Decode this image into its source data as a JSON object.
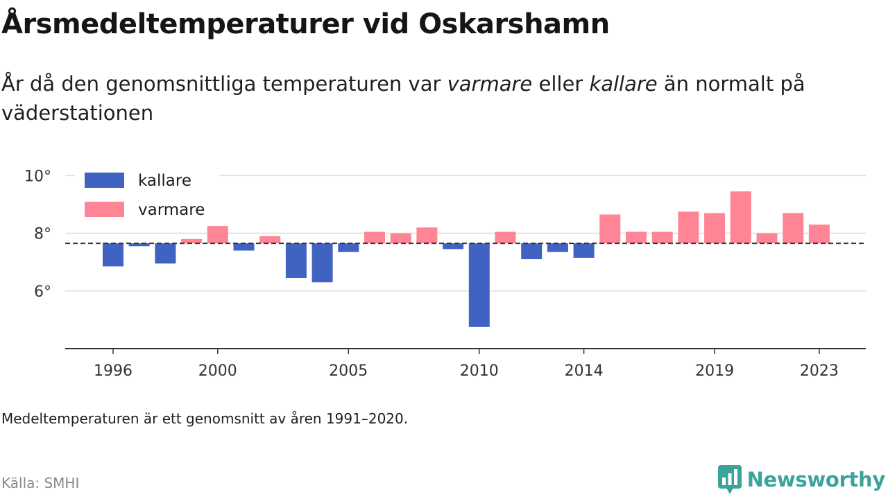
{
  "header": {
    "title": "Årsmedeltemperaturer vid Oskarshamn",
    "subtitle_before": "År då den genomsnittliga temperaturen var ",
    "subtitle_warm_word": "varmare",
    "subtitle_middle": " eller ",
    "subtitle_cold_word": "kallare",
    "subtitle_after": " än normalt på väderstationen"
  },
  "footer": {
    "note": "Medeltemperaturen är ett genomsnitt av åren 1991–2020.",
    "source": "Källa: SMHI",
    "brand": "Newsworthy"
  },
  "colors": {
    "cold": "#4062c0",
    "warm": "#ff8496",
    "baseline": "#333333",
    "grid": "#dddddd",
    "axis": "#333333",
    "brand": "#3aa39a"
  },
  "chart_data": {
    "type": "bar",
    "title": "Årsmedeltemperaturer vid Oskarshamn",
    "xlabel": "",
    "ylabel": "",
    "baseline": 7.65,
    "ylim": [
      4.0,
      10.2
    ],
    "y_ticks": [
      6,
      8,
      10
    ],
    "y_tick_labels": [
      "6°",
      "8°",
      "10°"
    ],
    "x_ticks": [
      1996,
      2000,
      2005,
      2010,
      2014,
      2019,
      2023
    ],
    "x_tick_labels": [
      "1996",
      "2000",
      "2005",
      "2010",
      "2014",
      "2019",
      "2023"
    ],
    "legend": {
      "position": "top-left",
      "entries": [
        {
          "key": "cold",
          "label": "kallare"
        },
        {
          "key": "warm",
          "label": "varmare"
        }
      ]
    },
    "grid": true,
    "years": [
      1996,
      1997,
      1998,
      1999,
      2000,
      2001,
      2002,
      2003,
      2004,
      2005,
      2006,
      2007,
      2008,
      2009,
      2010,
      2011,
      2012,
      2013,
      2014,
      2015,
      2016,
      2017,
      2018,
      2019,
      2020,
      2021,
      2022,
      2023
    ],
    "values": [
      6.85,
      7.55,
      6.95,
      7.8,
      8.25,
      7.4,
      7.9,
      6.45,
      6.3,
      7.35,
      8.05,
      8.0,
      8.2,
      7.45,
      4.75,
      8.05,
      7.1,
      7.35,
      7.15,
      8.65,
      8.05,
      8.05,
      8.75,
      8.7,
      9.45,
      8.0,
      8.7,
      8.3
    ]
  }
}
